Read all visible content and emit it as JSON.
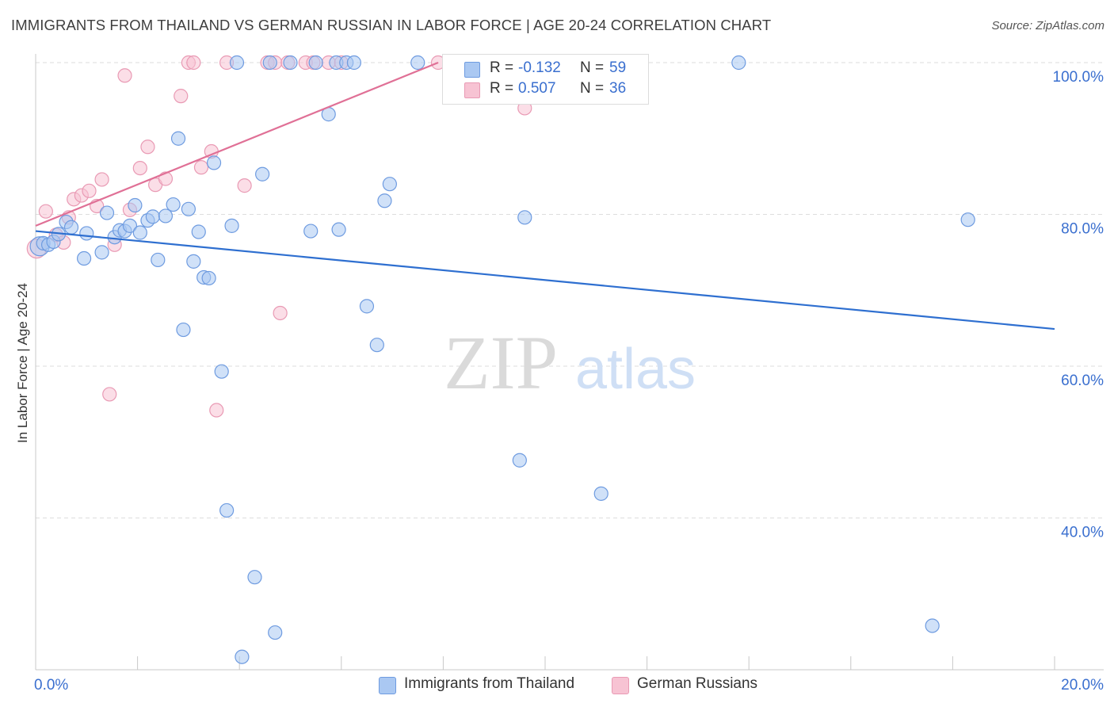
{
  "title": "IMMIGRANTS FROM THAILAND VS GERMAN RUSSIAN IN LABOR FORCE | AGE 20-24 CORRELATION CHART",
  "source": "Source: ZipAtlas.com",
  "watermark": {
    "zip": "ZIP",
    "atlas": "atlas"
  },
  "legend": {
    "r_label": "R =",
    "n_label": "N =",
    "series1": {
      "r": "-0.132",
      "n": "59"
    },
    "series2": {
      "r": "0.507",
      "n": "36"
    }
  },
  "colors": {
    "blue_fill": "#aac8f2",
    "blue_stroke": "#6e9be0",
    "blue_line": "#2e6fd0",
    "pink_fill": "#f7c3d3",
    "pink_stroke": "#e99ab4",
    "pink_line": "#e07096",
    "grid": "#dddddd",
    "axis_text": "#3a6fcf"
  },
  "chart_data": {
    "type": "scatter",
    "title": "IMMIGRANTS FROM THAILAND VS GERMAN RUSSIAN IN LABOR FORCE | AGE 20-24 CORRELATION CHART",
    "xlabel": "",
    "ylabel": "In Labor Force | Age 20-24",
    "xlim": [
      0,
      20
    ],
    "ylim": [
      20,
      100
    ],
    "x_tick_labels": [
      "0.0%",
      "20.0%"
    ],
    "y_ticks": [
      40,
      60,
      80,
      100
    ],
    "y_tick_labels": [
      "40.0%",
      "60.0%",
      "80.0%",
      "100.0%"
    ],
    "grid": true,
    "series": [
      {
        "name": "Immigrants from Thailand",
        "color": "blue",
        "r": -0.132,
        "n": 59,
        "trend": {
          "x": [
            0,
            20
          ],
          "y": [
            77.8,
            64.9
          ]
        },
        "points": [
          [
            0.08,
            75.8
          ],
          [
            0.15,
            76.2
          ],
          [
            0.25,
            76.0
          ],
          [
            0.35,
            76.4
          ],
          [
            0.45,
            77.4
          ],
          [
            0.6,
            79.0
          ],
          [
            0.7,
            78.3
          ],
          [
            0.95,
            74.2
          ],
          [
            1.0,
            77.5
          ],
          [
            1.4,
            80.2
          ],
          [
            1.3,
            75.0
          ],
          [
            1.55,
            77.0
          ],
          [
            1.65,
            77.9
          ],
          [
            1.75,
            77.8
          ],
          [
            1.85,
            78.5
          ],
          [
            1.95,
            81.2
          ],
          [
            2.05,
            77.6
          ],
          [
            2.2,
            79.2
          ],
          [
            2.3,
            79.7
          ],
          [
            2.4,
            74.0
          ],
          [
            2.55,
            79.8
          ],
          [
            2.7,
            81.3
          ],
          [
            2.8,
            90.0
          ],
          [
            2.9,
            64.8
          ],
          [
            3.0,
            80.7
          ],
          [
            3.1,
            73.8
          ],
          [
            3.2,
            77.7
          ],
          [
            3.3,
            71.7
          ],
          [
            3.4,
            71.6
          ],
          [
            3.5,
            86.8
          ],
          [
            3.65,
            59.3
          ],
          [
            3.75,
            41.0
          ],
          [
            3.85,
            78.5
          ],
          [
            3.95,
            100.0
          ],
          [
            4.05,
            21.7
          ],
          [
            4.3,
            32.2
          ],
          [
            4.45,
            85.3
          ],
          [
            4.6,
            100.0
          ],
          [
            4.7,
            24.9
          ],
          [
            5.0,
            100.0
          ],
          [
            5.4,
            77.8
          ],
          [
            5.5,
            100.0
          ],
          [
            5.75,
            93.2
          ],
          [
            5.9,
            100.0
          ],
          [
            5.95,
            78.0
          ],
          [
            6.1,
            100.0
          ],
          [
            6.25,
            100.0
          ],
          [
            6.5,
            67.9
          ],
          [
            6.7,
            62.8
          ],
          [
            6.85,
            81.8
          ],
          [
            6.95,
            84.0
          ],
          [
            7.5,
            100.0
          ],
          [
            8.6,
            100.0
          ],
          [
            9.5,
            47.6
          ],
          [
            9.6,
            79.6
          ],
          [
            11.1,
            43.2
          ],
          [
            13.8,
            100.0
          ],
          [
            17.6,
            25.8
          ],
          [
            18.3,
            79.3
          ]
        ]
      },
      {
        "name": "German Russians",
        "color": "pink",
        "r": 0.507,
        "n": 36,
        "trend": {
          "x": [
            0,
            7.9
          ],
          "y": [
            78.5,
            100.0
          ]
        },
        "points": [
          [
            0.02,
            75.5
          ],
          [
            0.2,
            80.4
          ],
          [
            0.4,
            77.3
          ],
          [
            0.55,
            76.3
          ],
          [
            0.65,
            79.6
          ],
          [
            0.75,
            82.0
          ],
          [
            0.9,
            82.5
          ],
          [
            1.05,
            83.1
          ],
          [
            1.2,
            81.1
          ],
          [
            1.3,
            84.6
          ],
          [
            1.45,
            56.3
          ],
          [
            1.55,
            76.0
          ],
          [
            1.75,
            98.3
          ],
          [
            1.85,
            80.6
          ],
          [
            2.05,
            86.1
          ],
          [
            2.2,
            88.9
          ],
          [
            2.35,
            83.9
          ],
          [
            2.55,
            84.7
          ],
          [
            2.85,
            95.6
          ],
          [
            3.0,
            100.0
          ],
          [
            3.1,
            100.0
          ],
          [
            3.25,
            86.2
          ],
          [
            3.45,
            88.3
          ],
          [
            3.55,
            54.2
          ],
          [
            3.75,
            100.0
          ],
          [
            4.1,
            83.8
          ],
          [
            4.55,
            100.0
          ],
          [
            4.7,
            100.0
          ],
          [
            4.8,
            67.0
          ],
          [
            4.95,
            100.0
          ],
          [
            5.3,
            100.0
          ],
          [
            5.45,
            100.0
          ],
          [
            5.75,
            100.0
          ],
          [
            6.0,
            100.0
          ],
          [
            7.9,
            100.0
          ],
          [
            9.6,
            94.0
          ]
        ]
      }
    ]
  }
}
